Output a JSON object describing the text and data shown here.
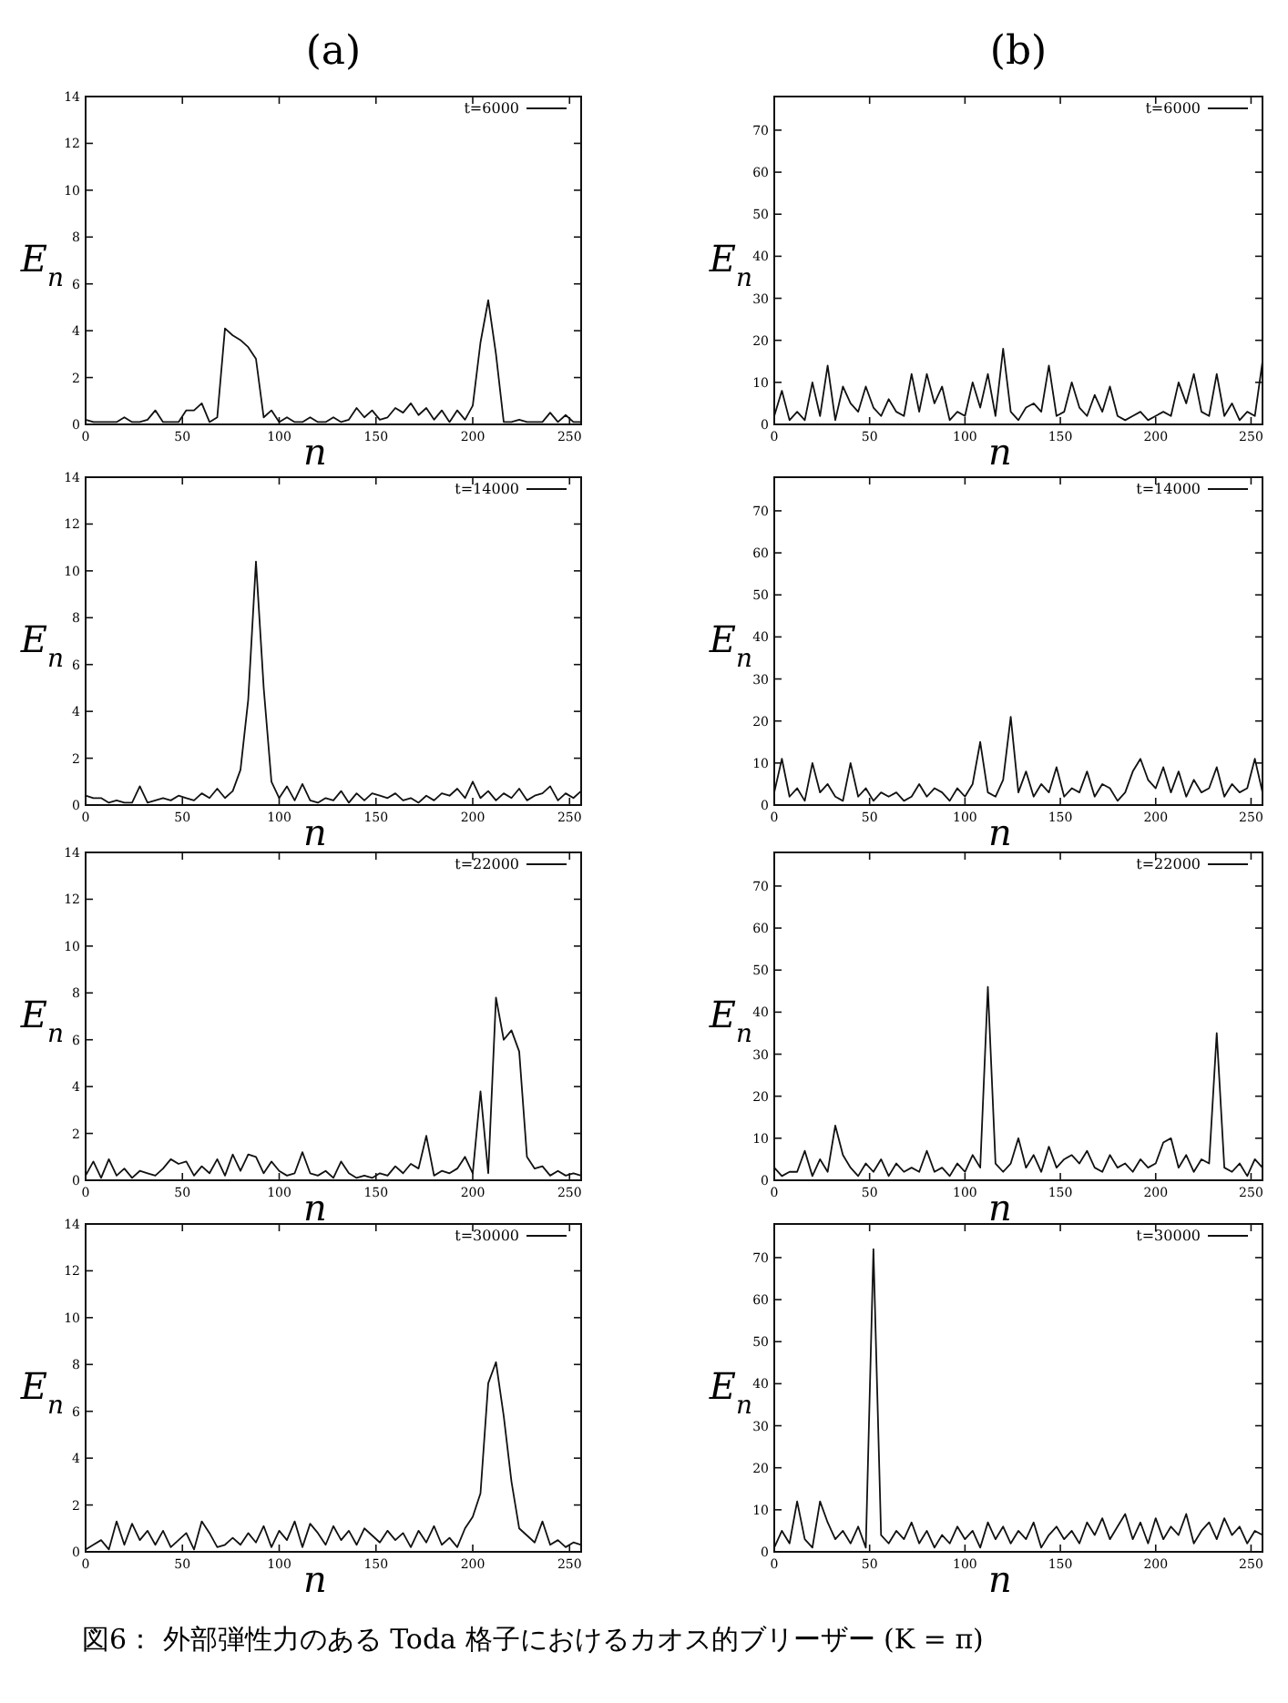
{
  "chart_data": [
    {
      "type": "line",
      "title": "(a)",
      "xlabel": "n",
      "ylabel": "E$_{n}$",
      "legend": "top right",
      "grid": false,
      "xlim": [
        0,
        256
      ],
      "xticks": [
        0,
        50,
        100,
        150,
        200,
        250
      ],
      "ylim": [
        0,
        14
      ],
      "yticks": [
        0,
        2,
        4,
        6,
        8,
        10,
        12,
        14
      ],
      "series": [
        {
          "name": "t=6000",
          "color": "#111111",
          "x": [
            0,
            4,
            8,
            12,
            16,
            20,
            24,
            28,
            32,
            36,
            40,
            44,
            48,
            52,
            56,
            60,
            64,
            68,
            72,
            76,
            80,
            84,
            88,
            92,
            96,
            100,
            104,
            108,
            112,
            116,
            120,
            124,
            128,
            132,
            136,
            140,
            144,
            148,
            152,
            156,
            160,
            164,
            168,
            172,
            176,
            180,
            184,
            188,
            192,
            196,
            200,
            204,
            208,
            212,
            216,
            220,
            224,
            228,
            232,
            236,
            240,
            244,
            248,
            252,
            256
          ],
          "values": [
            0.2,
            0.1,
            0.1,
            0.1,
            0.1,
            0.3,
            0.1,
            0.1,
            0.2,
            0.6,
            0.1,
            0.1,
            0.1,
            0.6,
            0.6,
            0.9,
            0.1,
            0.3,
            4.1,
            3.8,
            3.6,
            3.3,
            2.8,
            0.3,
            0.6,
            0.1,
            0.3,
            0.1,
            0.1,
            0.3,
            0.1,
            0.1,
            0.3,
            0.1,
            0.2,
            0.7,
            0.3,
            0.6,
            0.2,
            0.3,
            0.7,
            0.5,
            0.9,
            0.4,
            0.7,
            0.2,
            0.6,
            0.1,
            0.6,
            0.2,
            0.8,
            3.5,
            5.3,
            3.0,
            0.1,
            0.1,
            0.2,
            0.1,
            0.1,
            0.1,
            0.5,
            0.1,
            0.4,
            0.1,
            0.1
          ]
        }
      ]
    },
    {
      "type": "line",
      "title": "(b)",
      "xlabel": "n",
      "ylabel": "E$_{n}$",
      "legend": "top right",
      "grid": false,
      "xlim": [
        0,
        256
      ],
      "xticks": [
        0,
        50,
        100,
        150,
        200,
        250
      ],
      "ylim": [
        0,
        78
      ],
      "yticks": [
        0,
        10,
        20,
        30,
        40,
        50,
        60,
        70
      ],
      "series": [
        {
          "name": "t=6000",
          "color": "#111111",
          "x": [
            0,
            4,
            8,
            12,
            16,
            20,
            24,
            28,
            32,
            36,
            40,
            44,
            48,
            52,
            56,
            60,
            64,
            68,
            72,
            76,
            80,
            84,
            88,
            92,
            96,
            100,
            104,
            108,
            112,
            116,
            120,
            124,
            128,
            132,
            136,
            140,
            144,
            148,
            152,
            156,
            160,
            164,
            168,
            172,
            176,
            180,
            184,
            188,
            192,
            196,
            200,
            204,
            208,
            212,
            216,
            220,
            224,
            228,
            232,
            236,
            240,
            244,
            248,
            252,
            256
          ],
          "values": [
            2,
            8,
            1,
            3,
            1,
            10,
            2,
            14,
            1,
            9,
            5,
            3,
            9,
            4,
            2,
            6,
            3,
            2,
            12,
            3,
            12,
            5,
            9,
            1,
            3,
            2,
            10,
            4,
            12,
            2,
            18,
            3,
            1,
            4,
            5,
            3,
            14,
            2,
            3,
            10,
            4,
            2,
            7,
            3,
            9,
            2,
            1,
            2,
            3,
            1,
            2,
            3,
            2,
            10,
            5,
            12,
            3,
            2,
            12,
            2,
            5,
            1,
            3,
            2,
            15
          ]
        }
      ]
    },
    {
      "type": "line",
      "xlabel": "n",
      "ylabel": "E$_{n}$",
      "legend": "top right",
      "grid": false,
      "xlim": [
        0,
        256
      ],
      "xticks": [
        0,
        50,
        100,
        150,
        200,
        250
      ],
      "ylim": [
        0,
        14
      ],
      "yticks": [
        0,
        2,
        4,
        6,
        8,
        10,
        12,
        14
      ],
      "series": [
        {
          "name": "t=14000",
          "color": "#111111",
          "x": [
            0,
            4,
            8,
            12,
            16,
            20,
            24,
            28,
            32,
            36,
            40,
            44,
            48,
            52,
            56,
            60,
            64,
            68,
            72,
            76,
            80,
            84,
            88,
            92,
            96,
            100,
            104,
            108,
            112,
            116,
            120,
            124,
            128,
            132,
            136,
            140,
            144,
            148,
            152,
            156,
            160,
            164,
            168,
            172,
            176,
            180,
            184,
            188,
            192,
            196,
            200,
            204,
            208,
            212,
            216,
            220,
            224,
            228,
            232,
            236,
            240,
            244,
            248,
            252,
            256
          ],
          "values": [
            0.4,
            0.3,
            0.3,
            0.1,
            0.2,
            0.1,
            0.1,
            0.8,
            0.1,
            0.2,
            0.3,
            0.2,
            0.4,
            0.3,
            0.2,
            0.5,
            0.3,
            0.7,
            0.3,
            0.6,
            1.5,
            4.5,
            10.4,
            5.0,
            1.0,
            0.3,
            0.8,
            0.2,
            0.9,
            0.2,
            0.1,
            0.3,
            0.2,
            0.6,
            0.1,
            0.5,
            0.2,
            0.5,
            0.4,
            0.3,
            0.5,
            0.2,
            0.3,
            0.1,
            0.4,
            0.2,
            0.5,
            0.4,
            0.7,
            0.3,
            1.0,
            0.3,
            0.6,
            0.2,
            0.5,
            0.3,
            0.7,
            0.2,
            0.4,
            0.5,
            0.8,
            0.2,
            0.5,
            0.3,
            0.6
          ]
        }
      ]
    },
    {
      "type": "line",
      "xlabel": "n",
      "ylabel": "E$_{n}$",
      "legend": "top right",
      "grid": false,
      "xlim": [
        0,
        256
      ],
      "xticks": [
        0,
        50,
        100,
        150,
        200,
        250
      ],
      "ylim": [
        0,
        78
      ],
      "yticks": [
        0,
        10,
        20,
        30,
        40,
        50,
        60,
        70
      ],
      "series": [
        {
          "name": "t=14000",
          "color": "#111111",
          "x": [
            0,
            4,
            8,
            12,
            16,
            20,
            24,
            28,
            32,
            36,
            40,
            44,
            48,
            52,
            56,
            60,
            64,
            68,
            72,
            76,
            80,
            84,
            88,
            92,
            96,
            100,
            104,
            108,
            112,
            116,
            120,
            124,
            128,
            132,
            136,
            140,
            144,
            148,
            152,
            156,
            160,
            164,
            168,
            172,
            176,
            180,
            184,
            188,
            192,
            196,
            200,
            204,
            208,
            212,
            216,
            220,
            224,
            228,
            232,
            236,
            240,
            244,
            248,
            252,
            256
          ],
          "values": [
            3,
            11,
            2,
            4,
            1,
            10,
            3,
            5,
            2,
            1,
            10,
            2,
            4,
            1,
            3,
            2,
            3,
            1,
            2,
            5,
            2,
            4,
            3,
            1,
            4,
            2,
            5,
            15,
            3,
            2,
            6,
            21,
            3,
            8,
            2,
            5,
            3,
            9,
            2,
            4,
            3,
            8,
            2,
            5,
            4,
            1,
            3,
            8,
            11,
            6,
            4,
            9,
            3,
            8,
            2,
            6,
            3,
            4,
            9,
            2,
            5,
            3,
            4,
            11,
            3
          ]
        }
      ]
    },
    {
      "type": "line",
      "xlabel": "n",
      "ylabel": "E$_{n}$",
      "legend": "top right",
      "grid": false,
      "xlim": [
        0,
        256
      ],
      "xticks": [
        0,
        50,
        100,
        150,
        200,
        250
      ],
      "ylim": [
        0,
        14
      ],
      "yticks": [
        0,
        2,
        4,
        6,
        8,
        10,
        12,
        14
      ],
      "series": [
        {
          "name": "t=22000",
          "color": "#111111",
          "x": [
            0,
            4,
            8,
            12,
            16,
            20,
            24,
            28,
            32,
            36,
            40,
            44,
            48,
            52,
            56,
            60,
            64,
            68,
            72,
            76,
            80,
            84,
            88,
            92,
            96,
            100,
            104,
            108,
            112,
            116,
            120,
            124,
            128,
            132,
            136,
            140,
            144,
            148,
            152,
            156,
            160,
            164,
            168,
            172,
            176,
            180,
            184,
            188,
            192,
            196,
            200,
            204,
            208,
            212,
            216,
            220,
            224,
            228,
            232,
            236,
            240,
            244,
            248,
            252,
            256
          ],
          "values": [
            0.2,
            0.8,
            0.1,
            0.9,
            0.2,
            0.5,
            0.1,
            0.4,
            0.3,
            0.2,
            0.5,
            0.9,
            0.7,
            0.8,
            0.2,
            0.6,
            0.3,
            0.9,
            0.2,
            1.1,
            0.4,
            1.1,
            1.0,
            0.3,
            0.8,
            0.4,
            0.2,
            0.3,
            1.2,
            0.3,
            0.2,
            0.4,
            0.1,
            0.8,
            0.3,
            0.1,
            0.2,
            0.1,
            0.3,
            0.2,
            0.6,
            0.3,
            0.7,
            0.5,
            1.9,
            0.2,
            0.4,
            0.3,
            0.5,
            1.0,
            0.3,
            3.8,
            0.3,
            7.8,
            6.0,
            6.4,
            5.5,
            1.0,
            0.5,
            0.6,
            0.2,
            0.4,
            0.2,
            0.3,
            0.2
          ]
        }
      ]
    },
    {
      "type": "line",
      "xlabel": "n",
      "ylabel": "E$_{n}$",
      "legend": "top right",
      "grid": false,
      "xlim": [
        0,
        256
      ],
      "xticks": [
        0,
        50,
        100,
        150,
        200,
        250
      ],
      "ylim": [
        0,
        78
      ],
      "yticks": [
        0,
        10,
        20,
        30,
        40,
        50,
        60,
        70
      ],
      "series": [
        {
          "name": "t=22000",
          "color": "#111111",
          "x": [
            0,
            4,
            8,
            12,
            16,
            20,
            24,
            28,
            32,
            36,
            40,
            44,
            48,
            52,
            56,
            60,
            64,
            68,
            72,
            76,
            80,
            84,
            88,
            92,
            96,
            100,
            104,
            108,
            112,
            116,
            120,
            124,
            128,
            132,
            136,
            140,
            144,
            148,
            152,
            156,
            160,
            164,
            168,
            172,
            176,
            180,
            184,
            188,
            192,
            196,
            200,
            204,
            208,
            212,
            216,
            220,
            224,
            228,
            232,
            236,
            240,
            244,
            248,
            252,
            256
          ],
          "values": [
            3,
            1,
            2,
            2,
            7,
            1,
            5,
            2,
            13,
            6,
            3,
            1,
            4,
            2,
            5,
            1,
            4,
            2,
            3,
            2,
            7,
            2,
            3,
            1,
            4,
            2,
            6,
            3,
            46,
            4,
            2,
            4,
            10,
            3,
            6,
            2,
            8,
            3,
            5,
            6,
            4,
            7,
            3,
            2,
            6,
            3,
            4,
            2,
            5,
            3,
            4,
            9,
            10,
            3,
            6,
            2,
            5,
            4,
            35,
            3,
            2,
            4,
            1,
            5,
            3
          ]
        }
      ]
    },
    {
      "type": "line",
      "xlabel": "n",
      "ylabel": "E$_{n}$",
      "legend": "top right",
      "grid": false,
      "xlim": [
        0,
        256
      ],
      "xticks": [
        0,
        50,
        100,
        150,
        200,
        250
      ],
      "ylim": [
        0,
        14
      ],
      "yticks": [
        0,
        2,
        4,
        6,
        8,
        10,
        12,
        14
      ],
      "series": [
        {
          "name": "t=30000",
          "color": "#111111",
          "x": [
            0,
            4,
            8,
            12,
            16,
            20,
            24,
            28,
            32,
            36,
            40,
            44,
            48,
            52,
            56,
            60,
            64,
            68,
            72,
            76,
            80,
            84,
            88,
            92,
            96,
            100,
            104,
            108,
            112,
            116,
            120,
            124,
            128,
            132,
            136,
            140,
            144,
            148,
            152,
            156,
            160,
            164,
            168,
            172,
            176,
            180,
            184,
            188,
            192,
            196,
            200,
            204,
            208,
            212,
            216,
            220,
            224,
            228,
            232,
            236,
            240,
            244,
            248,
            252,
            256
          ],
          "values": [
            0.1,
            0.3,
            0.5,
            0.1,
            1.3,
            0.3,
            1.2,
            0.5,
            0.9,
            0.3,
            0.9,
            0.2,
            0.5,
            0.8,
            0.1,
            1.3,
            0.8,
            0.2,
            0.3,
            0.6,
            0.3,
            0.8,
            0.4,
            1.1,
            0.2,
            0.9,
            0.5,
            1.3,
            0.2,
            1.2,
            0.8,
            0.3,
            1.1,
            0.5,
            0.9,
            0.3,
            1.0,
            0.7,
            0.4,
            0.9,
            0.5,
            0.8,
            0.2,
            0.9,
            0.4,
            1.1,
            0.3,
            0.6,
            0.2,
            1.0,
            1.5,
            2.5,
            7.2,
            8.1,
            5.8,
            3.0,
            1.0,
            0.7,
            0.4,
            1.3,
            0.3,
            0.5,
            0.2,
            0.4,
            0.3
          ]
        }
      ]
    },
    {
      "type": "line",
      "xlabel": "n",
      "ylabel": "E$_{n}$",
      "legend": "top right",
      "grid": false,
      "xlim": [
        0,
        256
      ],
      "xticks": [
        0,
        50,
        100,
        150,
        200,
        250
      ],
      "ylim": [
        0,
        78
      ],
      "yticks": [
        0,
        10,
        20,
        30,
        40,
        50,
        60,
        70
      ],
      "annotations": [
        "図6： 外部弾性力のある Toda 格子におけるカオス的ブリーザー (K = π)"
      ],
      "series": [
        {
          "name": "t=30000",
          "color": "#111111",
          "x": [
            0,
            4,
            8,
            12,
            16,
            20,
            24,
            28,
            32,
            36,
            40,
            44,
            48,
            52,
            56,
            60,
            64,
            68,
            72,
            76,
            80,
            84,
            88,
            92,
            96,
            100,
            104,
            108,
            112,
            116,
            120,
            124,
            128,
            132,
            136,
            140,
            144,
            148,
            152,
            156,
            160,
            164,
            168,
            172,
            176,
            180,
            184,
            188,
            192,
            196,
            200,
            204,
            208,
            212,
            216,
            220,
            224,
            228,
            232,
            236,
            240,
            244,
            248,
            252,
            256
          ],
          "values": [
            1,
            5,
            2,
            12,
            3,
            1,
            12,
            7,
            3,
            5,
            2,
            6,
            1,
            72,
            4,
            2,
            5,
            3,
            7,
            2,
            5,
            1,
            4,
            2,
            6,
            3,
            5,
            1,
            7,
            3,
            6,
            2,
            5,
            3,
            7,
            1,
            4,
            6,
            3,
            5,
            2,
            7,
            4,
            8,
            3,
            6,
            9,
            3,
            7,
            2,
            8,
            3,
            6,
            4,
            9,
            2,
            5,
            7,
            3,
            8,
            4,
            6,
            2,
            5,
            4
          ]
        }
      ]
    }
  ]
}
